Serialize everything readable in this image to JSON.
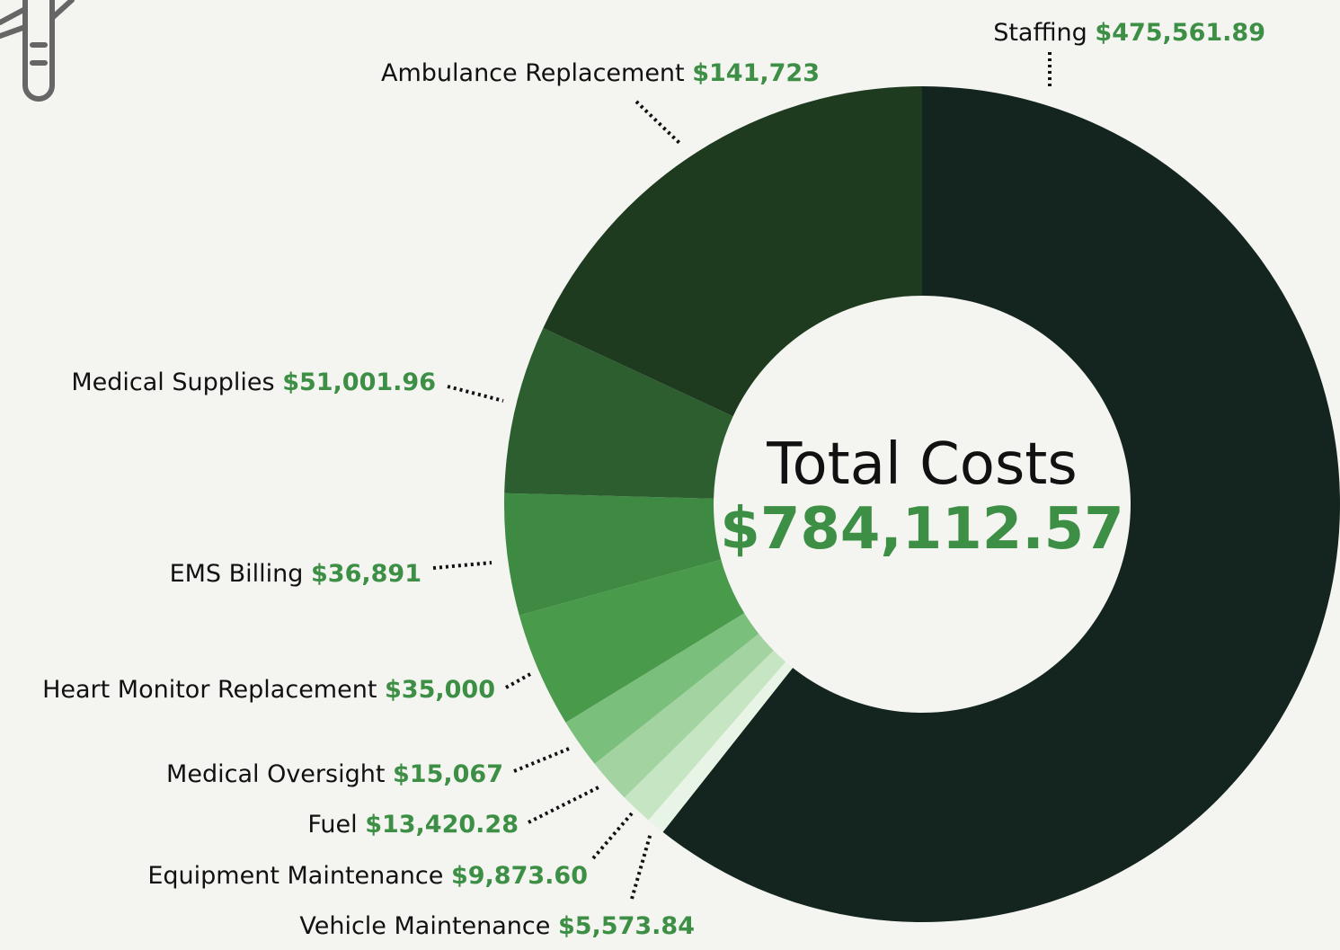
{
  "chart_data": {
    "type": "donut",
    "center_title": "Total Costs",
    "total": 784112.57,
    "total_label": "$784,112.57",
    "categories": [
      "Staffing",
      "Vehicle Maintenance",
      "Equipment Maintenance",
      "Fuel",
      "Medical Oversight",
      "Heart Monitor Replacement",
      "EMS Billing",
      "Medical Supplies",
      "Ambulance Replacement"
    ],
    "values": [
      475561.89,
      5573.84,
      9873.6,
      13420.28,
      15067,
      35000,
      36891,
      51001.96,
      141723
    ],
    "value_labels": [
      "$475,561.89",
      "$5,573.84",
      "$9,873.60",
      "$13,420.28",
      "$15,067",
      "$35,000",
      "$36,891",
      "$51,001.96",
      "$141,723"
    ],
    "colors": [
      "#13251e",
      "#e8f4e6",
      "#c6e5c3",
      "#a3d3a1",
      "#7bbf7c",
      "#4a9a4c",
      "#3f8a43",
      "#2c5e30",
      "#1e3a1f"
    ]
  }
}
